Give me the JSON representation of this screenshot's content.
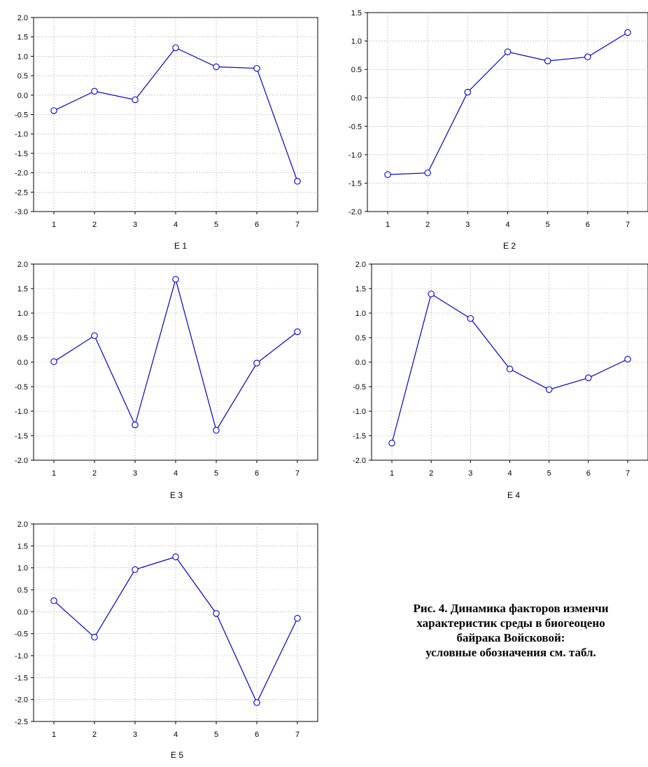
{
  "caption": {
    "line1": "Рис. 4. Динамика факторов изменчи",
    "line2": "характеристик среды в биогеоцено",
    "line3": "байрака Войсковой:",
    "line4": "условные обозначения см. табл."
  },
  "chart_data": [
    {
      "type": "line",
      "xlabel": "E 1",
      "categories": [
        "1",
        "2",
        "3",
        "4",
        "5",
        "6",
        "7"
      ],
      "values": [
        -0.4,
        0.1,
        -0.12,
        1.22,
        0.73,
        0.69,
        -2.22
      ],
      "ylim": [
        -3.0,
        2.0
      ],
      "yticks": [
        "2.0",
        "1.5",
        "1.0",
        "0.5",
        "0.0",
        "-0.5",
        "-1.0",
        "-1.5",
        "-2.0",
        "-2.5",
        "-3.0"
      ],
      "grid": true,
      "color": "#0000cc"
    },
    {
      "type": "line",
      "xlabel": "E 2",
      "categories": [
        "1",
        "2",
        "3",
        "4",
        "5",
        "6",
        "7"
      ],
      "values": [
        -1.35,
        -1.32,
        0.1,
        0.81,
        0.65,
        0.72,
        1.15
      ],
      "ylim": [
        -2.0,
        1.5
      ],
      "yticks": [
        "1.5",
        "1.0",
        "0.5",
        "0.0",
        "-0.5",
        "-1.0",
        "-1.5",
        "-2.0"
      ],
      "grid": true,
      "color": "#0000cc"
    },
    {
      "type": "line",
      "xlabel": "E 3",
      "categories": [
        "1",
        "2",
        "3",
        "4",
        "5",
        "6",
        "7"
      ],
      "values": [
        0.01,
        0.54,
        -1.28,
        1.69,
        -1.39,
        -0.02,
        0.62
      ],
      "ylim": [
        -2.0,
        2.0
      ],
      "yticks": [
        "2.0",
        "1.5",
        "1.0",
        "0.5",
        "0.0",
        "-0.5",
        "-1.0",
        "-1.5",
        "-2.0"
      ],
      "grid": true,
      "color": "#0000cc"
    },
    {
      "type": "line",
      "xlabel": "E 4",
      "categories": [
        "1",
        "2",
        "3",
        "4",
        "5",
        "6",
        "7"
      ],
      "values": [
        -1.65,
        1.39,
        0.89,
        -0.14,
        -0.56,
        -0.32,
        0.06
      ],
      "ylim": [
        -2.0,
        2.0
      ],
      "yticks": [
        "2.0",
        "1.5",
        "1.0",
        "0.5",
        "0.0",
        "-0.5",
        "-1.0",
        "-1.5",
        "-2.0"
      ],
      "grid": true,
      "color": "#0000cc"
    },
    {
      "type": "line",
      "xlabel": "E 5",
      "categories": [
        "1",
        "2",
        "3",
        "4",
        "5",
        "6",
        "7"
      ],
      "values": [
        0.25,
        -0.58,
        0.96,
        1.25,
        -0.04,
        -2.07,
        -0.15
      ],
      "ylim": [
        -2.5,
        2.0
      ],
      "yticks": [
        "2.0",
        "1.5",
        "1.0",
        "0.5",
        "0.0",
        "-0.5",
        "-1.0",
        "-1.5",
        "-2.0",
        "-2.5"
      ],
      "grid": true,
      "color": "#0000cc"
    }
  ]
}
